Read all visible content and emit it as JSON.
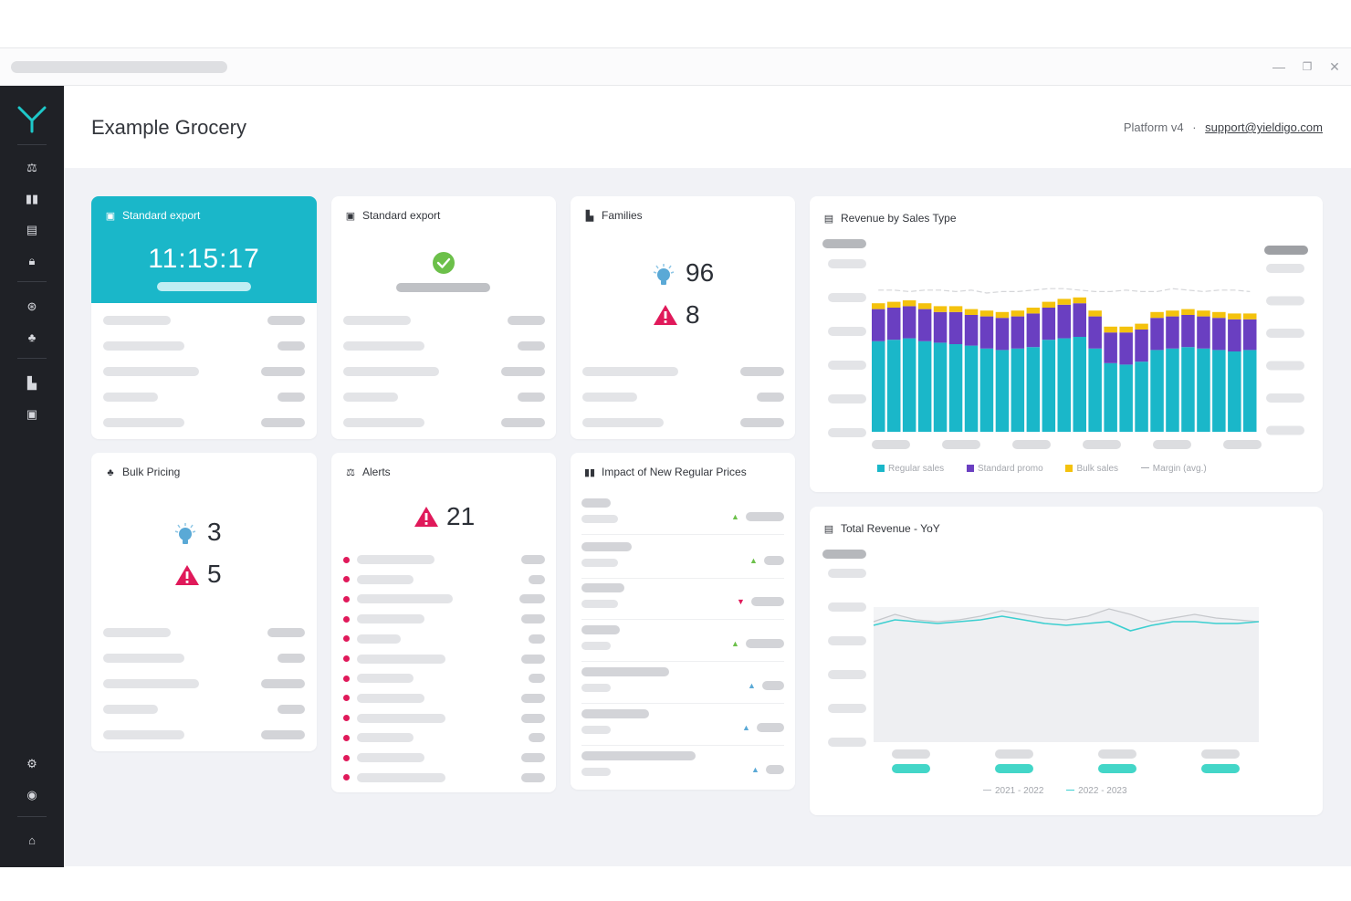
{
  "app": {
    "title": "Example Grocery",
    "version_label": "Platform v4",
    "separator": "·",
    "support_email": "support@yieldigo.com"
  },
  "window_controls": {
    "minimize": "—",
    "restore": "❐",
    "close": "✕"
  },
  "sidebar": {
    "icons": [
      "dashboard-icon",
      "columns-icon",
      "report-icon",
      "lock-icon",
      "target-icon",
      "hierarchy-icon",
      "bar-chart-icon",
      "clipboard-icon",
      "settings-icon",
      "user-icon",
      "home-icon"
    ]
  },
  "cards": {
    "export_active": {
      "title": "Standard export",
      "time": "11:15:17"
    },
    "export_done": {
      "title": "Standard export"
    },
    "families": {
      "title": "Families",
      "ideas": "96",
      "alerts": "8"
    },
    "bulk_pricing": {
      "title": "Bulk Pricing",
      "ideas": "3",
      "alerts": "5"
    },
    "alerts": {
      "title": "Alerts",
      "count": "21"
    },
    "impact": {
      "title": "Impact of New Regular Prices",
      "trends": [
        "up",
        "up",
        "down",
        "up",
        "up",
        "up",
        "up"
      ]
    }
  },
  "colors": {
    "teal": "#1ab7c9",
    "purple": "#6a3fc1",
    "yellow": "#f4c20d",
    "alert_red": "#e0195a",
    "success_green": "#6cc04a",
    "bulb_blue": "#5aa9d6"
  },
  "chart_data": [
    {
      "type": "bar",
      "title": "Revenue by Sales Type",
      "stacked": true,
      "series": [
        {
          "name": "Regular sales",
          "values": [
            62,
            63,
            64,
            62,
            61,
            60,
            59,
            57,
            56,
            57,
            58,
            63,
            64,
            65,
            57,
            47,
            46,
            48,
            56,
            57,
            58,
            57,
            56,
            55,
            56
          ]
        },
        {
          "name": "Standard promo",
          "values": [
            22,
            22,
            22,
            22,
            21,
            22,
            21,
            22,
            22,
            22,
            23,
            22,
            23,
            23,
            22,
            21,
            22,
            22,
            22,
            22,
            22,
            22,
            22,
            22,
            21
          ]
        },
        {
          "name": "Bulk sales",
          "values": [
            4,
            4,
            4,
            4,
            4,
            4,
            4,
            4,
            4,
            4,
            4,
            4,
            4,
            4,
            4,
            4,
            4,
            4,
            4,
            4,
            4,
            4,
            4,
            4,
            4
          ]
        }
      ],
      "line_series": {
        "name": "Margin (avg.)",
        "values": [
          97,
          97,
          96,
          97,
          97,
          96,
          97,
          95,
          96,
          96,
          97,
          98,
          98,
          97,
          96,
          96,
          97,
          96,
          96,
          98,
          97,
          96,
          97,
          97,
          96
        ]
      },
      "ylim": [
        0,
        110
      ],
      "legend": "bottom"
    },
    {
      "type": "area",
      "title": "Total Revenue - YoY",
      "series": [
        {
          "name": "2021 - 2022",
          "values": [
            66,
            70,
            67,
            66,
            67,
            69,
            72,
            70,
            68,
            67,
            69,
            73,
            70,
            66,
            68,
            70,
            68,
            67,
            66
          ]
        },
        {
          "name": "2022 - 2023",
          "values": [
            64,
            67,
            66,
            65,
            66,
            67,
            69,
            67,
            65,
            64,
            65,
            66,
            61,
            64,
            66,
            66,
            65,
            65,
            66
          ]
        }
      ],
      "ylim": [
        0,
        100
      ],
      "legend": "bottom"
    }
  ]
}
